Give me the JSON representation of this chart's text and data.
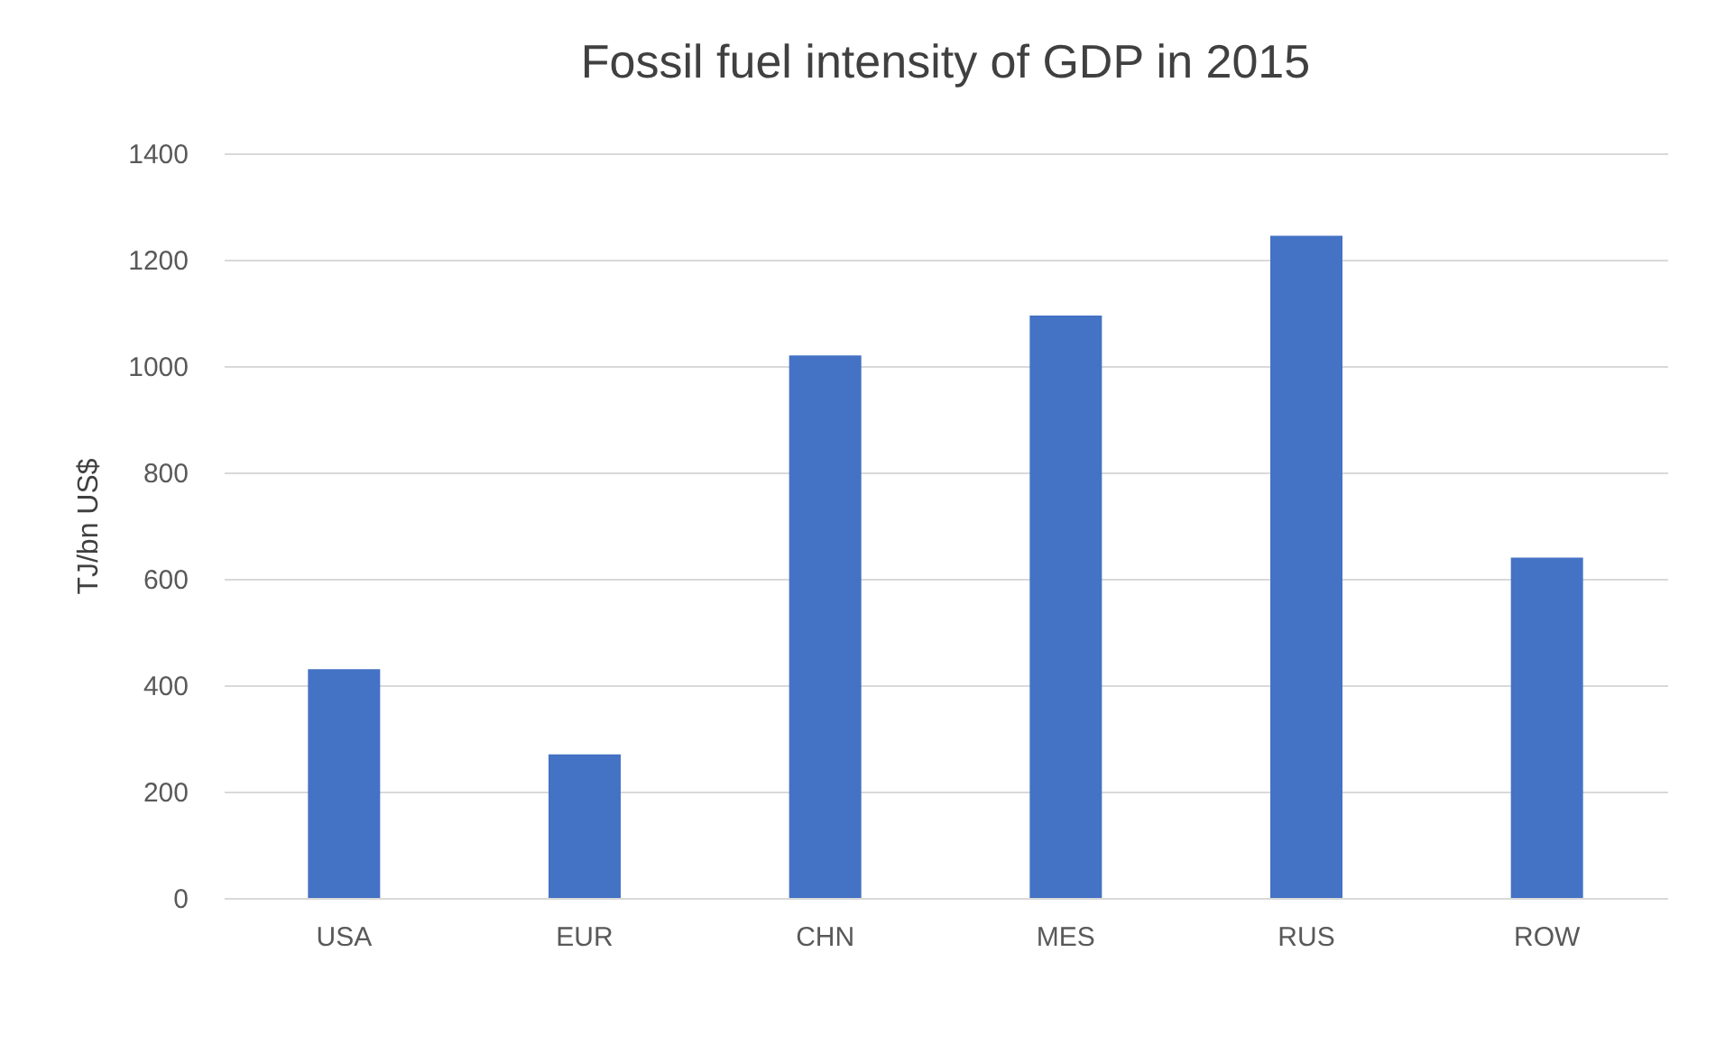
{
  "chart_data": {
    "type": "bar",
    "title": "Fossil fuel intensity of GDP in 2015",
    "ylabel": "TJ/bn US$",
    "categories": [
      "USA",
      "EUR",
      "CHN",
      "MES",
      "RUS",
      "ROW"
    ],
    "values": [
      430,
      270,
      1020,
      1095,
      1245,
      640
    ],
    "color": "#4472c4",
    "ylim": [
      0,
      1400
    ],
    "yticks": [
      0,
      200,
      400,
      600,
      800,
      1000,
      1200,
      1400
    ],
    "grid": "y"
  }
}
